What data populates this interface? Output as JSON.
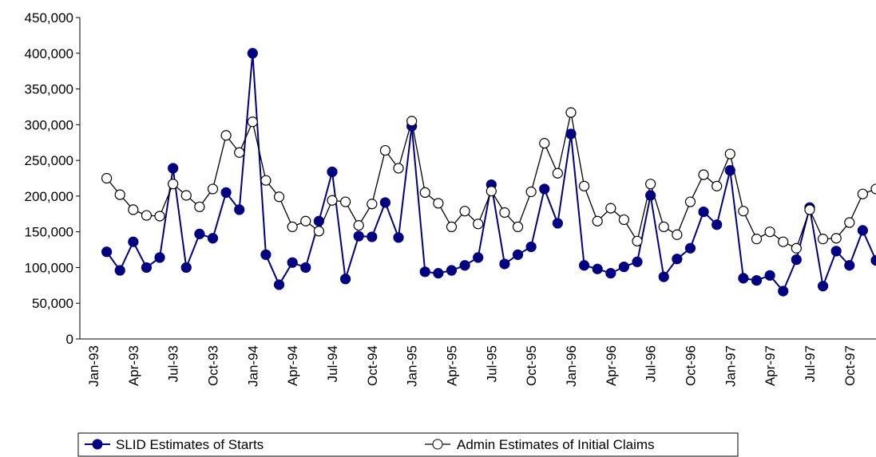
{
  "chart_data": {
    "type": "line",
    "categories": [
      "Jan-93",
      null,
      null,
      "Apr-93",
      null,
      null,
      "Jul-93",
      null,
      null,
      "Oct-93",
      null,
      null,
      "Jan-94",
      null,
      null,
      "Apr-94",
      null,
      null,
      "Jul-94",
      null,
      null,
      "Oct-94",
      null,
      null,
      "Jan-95",
      null,
      null,
      "Apr-95",
      null,
      null,
      "Jul-95",
      null,
      null,
      "Oct-95",
      null,
      null,
      "Jan-96",
      null,
      null,
      "Apr-96",
      null,
      null,
      "Jul-96",
      null,
      null,
      "Oct-96",
      null,
      null,
      "Jan-97",
      null,
      null,
      "Apr-97",
      null,
      null,
      "Jul-97",
      null,
      null,
      "Oct-97",
      null,
      null
    ],
    "series": [
      {
        "name": "SLID Estimates of Starts",
        "color": "#000080",
        "marker_fill": "#000080",
        "values": [
          null,
          122000,
          96000,
          136000,
          100000,
          114000,
          239000,
          100000,
          147000,
          141000,
          205000,
          181000,
          400000,
          118000,
          76000,
          107000,
          100000,
          165000,
          234000,
          84000,
          144000,
          143000,
          191000,
          142000,
          298000,
          94000,
          92000,
          96000,
          103000,
          114000,
          216000,
          105000,
          118000,
          129000,
          210000,
          162000,
          287000,
          103000,
          98000,
          92000,
          101000,
          108000,
          201000,
          87000,
          112000,
          127000,
          178000,
          160000,
          236000,
          85000,
          82000,
          89000,
          67000,
          111000,
          184000,
          74000,
          123000,
          103000,
          152000,
          110000
        ]
      },
      {
        "name": "Admin Estimates of Initial Claims",
        "color": "#000000",
        "marker_fill": "#ffffff",
        "values": [
          null,
          225000,
          202000,
          181000,
          173000,
          172000,
          217000,
          201000,
          185000,
          210000,
          285000,
          261000,
          304000,
          222000,
          199000,
          157000,
          165000,
          151000,
          194000,
          192000,
          159000,
          189000,
          264000,
          239000,
          305000,
          205000,
          190000,
          157000,
          179000,
          161000,
          207000,
          177000,
          157000,
          206000,
          274000,
          232000,
          317000,
          214000,
          165000,
          183000,
          167000,
          137000,
          217000,
          157000,
          146000,
          192000,
          230000,
          214000,
          259000,
          179000,
          140000,
          150000,
          136000,
          127000,
          181000,
          140000,
          141000,
          163000,
          203000,
          210000
        ]
      }
    ],
    "ylim": [
      0,
      450000
    ],
    "yticks": [
      0,
      {
        "value": 50000,
        "label": "50,000"
      },
      {
        "value": 100000,
        "label": "100,000"
      },
      {
        "value": 150000,
        "label": "150,000"
      },
      {
        "value": 200000,
        "label": "200,000"
      },
      {
        "value": 250000,
        "label": "250,000"
      },
      {
        "value": 300000,
        "label": "300,000"
      },
      {
        "value": 350000,
        "label": "350,000"
      },
      {
        "value": 400000,
        "label": "400,000"
      },
      {
        "value": 450000,
        "label": "450,000"
      }
    ],
    "grid": false
  }
}
